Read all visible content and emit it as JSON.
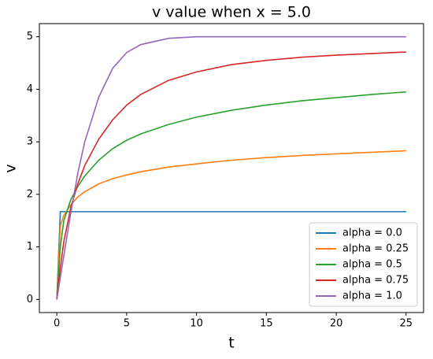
{
  "chart_data": {
    "type": "line",
    "title": "v value when x = 5.0",
    "x_label": "t",
    "y_label": "v",
    "x": [
      0,
      0.25,
      0.5,
      1,
      1.5,
      2,
      3,
      4,
      5,
      6,
      8,
      10,
      12.5,
      15,
      17.5,
      20,
      22.5,
      25
    ],
    "series": [
      {
        "name": "alpha = 0.0",
        "color": "#1f77b4",
        "values": [
          0,
          1.67,
          1.67,
          1.67,
          1.67,
          1.67,
          1.67,
          1.67,
          1.67,
          1.67,
          1.67,
          1.67,
          1.67,
          1.67,
          1.67,
          1.67,
          1.67,
          1.67
        ]
      },
      {
        "name": "alpha = 0.25",
        "color": "#ff7f0e",
        "values": [
          0,
          1.4,
          1.6,
          1.8,
          1.95,
          2.05,
          2.2,
          2.3,
          2.37,
          2.43,
          2.52,
          2.58,
          2.65,
          2.7,
          2.74,
          2.77,
          2.8,
          2.83
        ]
      },
      {
        "name": "alpha = 0.5",
        "color": "#2ca02c",
        "values": [
          0,
          1.0,
          1.5,
          1.9,
          2.15,
          2.35,
          2.65,
          2.87,
          3.03,
          3.15,
          3.33,
          3.47,
          3.6,
          3.7,
          3.78,
          3.84,
          3.9,
          3.95
        ]
      },
      {
        "name": "alpha = 0.75",
        "color": "#d62728",
        "values": [
          0,
          0.6,
          1.1,
          1.75,
          2.2,
          2.55,
          3.05,
          3.42,
          3.7,
          3.9,
          4.17,
          4.33,
          4.47,
          4.55,
          4.61,
          4.65,
          4.68,
          4.71
        ]
      },
      {
        "name": "alpha = 1.0",
        "color": "#9467bd",
        "values": [
          0,
          0.42,
          0.83,
          1.65,
          2.4,
          3.0,
          3.85,
          4.4,
          4.7,
          4.85,
          4.97,
          5.0,
          5.0,
          5.0,
          5.0,
          5.0,
          5.0,
          5.0
        ]
      }
    ],
    "xlim": [
      -1.25,
      26.25
    ],
    "ylim": [
      -0.25,
      5.25
    ],
    "xticks": [
      0,
      5,
      10,
      15,
      20,
      25
    ],
    "yticks": [
      0,
      1,
      2,
      3,
      4,
      5
    ],
    "legend": "lower right"
  }
}
